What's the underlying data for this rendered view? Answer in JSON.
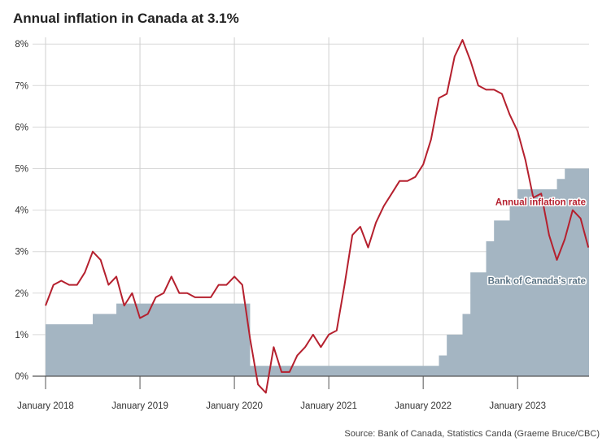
{
  "chart_data": {
    "type": "line",
    "title": "Annual inflation in Canada at 3.1%",
    "source": "Source: Bank of Canada, Statistics Canda (Graeme Bruce/CBC)",
    "ylim": [
      0,
      8
    ],
    "y_ticks": [
      "0%",
      "1%",
      "2%",
      "3%",
      "4%",
      "5%",
      "6%",
      "7%",
      "8%"
    ],
    "x_ticks": [
      "January 2018",
      "January 2019",
      "January 2020",
      "January 2021",
      "January 2022",
      "January 2023"
    ],
    "x_range": [
      "2018-01",
      "2023-07"
    ],
    "grid": "vertical and horizontal",
    "series": [
      {
        "name": "Annual inflation rate",
        "type": "line",
        "color": "#b5202e",
        "start": "2018-01",
        "values": [
          1.7,
          2.2,
          2.3,
          2.2,
          2.2,
          2.5,
          3.0,
          2.8,
          2.2,
          2.4,
          1.7,
          2.0,
          1.4,
          1.5,
          1.9,
          2.0,
          2.4,
          2.0,
          2.0,
          1.9,
          1.9,
          1.9,
          2.2,
          2.2,
          2.4,
          2.2,
          0.9,
          -0.2,
          -0.4,
          0.7,
          0.1,
          0.1,
          0.5,
          0.7,
          1.0,
          0.7,
          1.0,
          1.1,
          2.2,
          3.4,
          3.6,
          3.1,
          3.7,
          4.1,
          4.4,
          4.7,
          4.7,
          4.8,
          5.1,
          5.7,
          6.7,
          6.8,
          7.7,
          8.1,
          7.6,
          7.0,
          6.9,
          6.9,
          6.8,
          6.3,
          5.9,
          5.2,
          4.3,
          4.4,
          3.4,
          2.8,
          3.3,
          4.0,
          3.8,
          3.1
        ]
      },
      {
        "name": "Bank of Canada's rate",
        "type": "step-area",
        "color": "#a4b5c2",
        "label_color": "#5a7384",
        "start": "2018-01",
        "values": [
          1.25,
          1.25,
          1.25,
          1.25,
          1.25,
          1.25,
          1.5,
          1.5,
          1.5,
          1.75,
          1.75,
          1.75,
          1.75,
          1.75,
          1.75,
          1.75,
          1.75,
          1.75,
          1.75,
          1.75,
          1.75,
          1.75,
          1.75,
          1.75,
          1.75,
          1.75,
          0.25,
          0.25,
          0.25,
          0.25,
          0.25,
          0.25,
          0.25,
          0.25,
          0.25,
          0.25,
          0.25,
          0.25,
          0.25,
          0.25,
          0.25,
          0.25,
          0.25,
          0.25,
          0.25,
          0.25,
          0.25,
          0.25,
          0.25,
          0.25,
          0.5,
          1.0,
          1.0,
          1.5,
          2.5,
          2.5,
          3.25,
          3.75,
          3.75,
          4.25,
          4.5,
          4.5,
          4.5,
          4.5,
          4.5,
          4.75,
          5.0,
          5.0,
          5.0,
          5.0
        ]
      }
    ]
  }
}
